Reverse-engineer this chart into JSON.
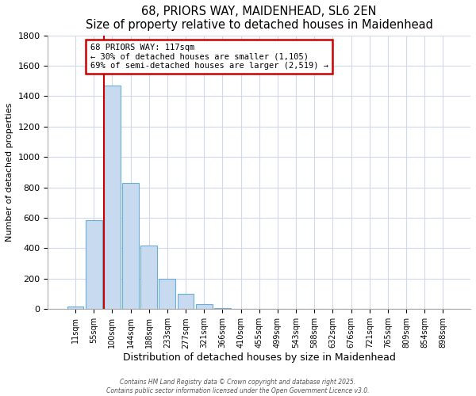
{
  "title": "68, PRIORS WAY, MAIDENHEAD, SL6 2EN",
  "subtitle": "Size of property relative to detached houses in Maidenhead",
  "xlabel": "Distribution of detached houses by size in Maidenhead",
  "ylabel": "Number of detached properties",
  "bar_labels": [
    "11sqm",
    "55sqm",
    "100sqm",
    "144sqm",
    "188sqm",
    "233sqm",
    "277sqm",
    "321sqm",
    "366sqm",
    "410sqm",
    "455sqm",
    "499sqm",
    "543sqm",
    "588sqm",
    "632sqm",
    "676sqm",
    "721sqm",
    "765sqm",
    "809sqm",
    "854sqm",
    "898sqm"
  ],
  "bar_values": [
    15,
    585,
    1470,
    830,
    420,
    200,
    100,
    35,
    5,
    2,
    1,
    0,
    0,
    0,
    0,
    0,
    0,
    0,
    0,
    0,
    0
  ],
  "bar_color": "#c8daf0",
  "bar_edge_color": "#6aaed6",
  "vline_color": "#cc0000",
  "vline_x_index": 2,
  "ylim": [
    0,
    1800
  ],
  "yticks": [
    0,
    200,
    400,
    600,
    800,
    1000,
    1200,
    1400,
    1600,
    1800
  ],
  "annotation_title": "68 PRIORS WAY: 117sqm",
  "annotation_line1": "← 30% of detached houses are smaller (1,105)",
  "annotation_line2": "69% of semi-detached houses are larger (2,519) →",
  "annotation_box_color": "white",
  "annotation_box_edge_color": "#cc0000",
  "footer1": "Contains HM Land Registry data © Crown copyright and database right 2025.",
  "footer2": "Contains public sector information licensed under the Open Government Licence v3.0.",
  "bg_color": "white",
  "grid_color": "#d0d8ea"
}
